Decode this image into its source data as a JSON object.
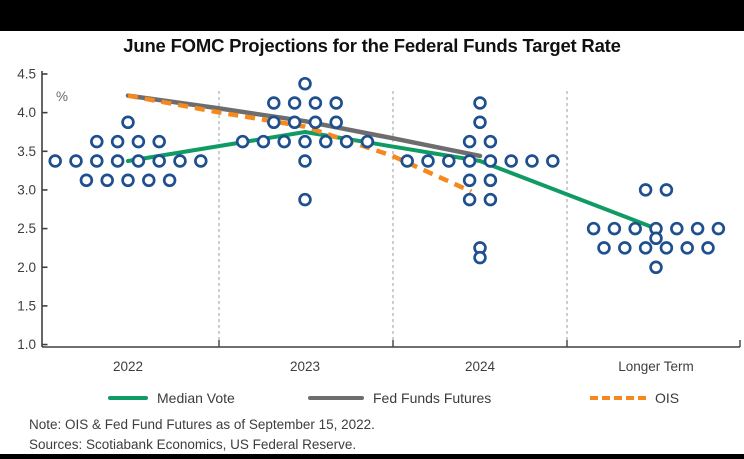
{
  "title": "June FOMC Projections for the Federal Funds Target Rate",
  "legend": {
    "median_vote": "Median Vote",
    "fed_funds_futures": "Fed Funds Futures",
    "ois": "OIS"
  },
  "notes": {
    "note": "Note: OIS & Fed Fund Futures as of September 15, 2022.",
    "sources": "Sources: Scotiabank Economics, US Federal Reserve."
  },
  "colors": {
    "banner": "#000000",
    "dot_outline": "#1e4f8f",
    "median_vote": "#109b64",
    "fed_funds_futures": "#6d6d6d",
    "ois": "#f6891e",
    "axis": "#404040",
    "separator": "#9c9c9c",
    "tick_text": "#3f3f3f"
  },
  "chart_data": {
    "type": "scatter",
    "title": "June FOMC Projections for the Federal Funds Target Rate",
    "xlabel": "",
    "ylabel": "%",
    "grid": "off",
    "legend_position": "bottom",
    "y_axis": {
      "unit_label": "%",
      "min": 1.0,
      "max": 4.5,
      "tick_values": [
        4.5,
        4.0,
        3.5,
        3.0,
        2.5,
        2.0,
        1.5,
        1.0
      ],
      "tick_labels": [
        "4.5",
        "4.0",
        "3.5",
        "3.0",
        "2.5",
        "2.0",
        "1.5",
        "1.0"
      ]
    },
    "x_categories": [
      "2022",
      "2023",
      "2024",
      "Longer Term"
    ],
    "dot_plot": {
      "marker": "open-circle",
      "description": "FOMC participant dots: count of votes at each target rate per year",
      "distributions": [
        {
          "category": "2022",
          "dots": [
            {
              "rate": 3.875,
              "count": 1
            },
            {
              "rate": 3.625,
              "count": 4
            },
            {
              "rate": 3.375,
              "count": 8
            },
            {
              "rate": 3.125,
              "count": 5
            }
          ]
        },
        {
          "category": "2023",
          "dots": [
            {
              "rate": 4.375,
              "count": 1
            },
            {
              "rate": 4.125,
              "count": 4
            },
            {
              "rate": 3.875,
              "count": 4
            },
            {
              "rate": 3.625,
              "count": 7
            },
            {
              "rate": 3.375,
              "count": 1
            },
            {
              "rate": 2.875,
              "count": 1
            }
          ]
        },
        {
          "category": "2024",
          "dots": [
            {
              "rate": 4.125,
              "count": 1
            },
            {
              "rate": 3.875,
              "count": 1
            },
            {
              "rate": 3.625,
              "count": 2
            },
            {
              "rate": 3.375,
              "count": 8
            },
            {
              "rate": 3.125,
              "count": 2
            },
            {
              "rate": 2.875,
              "count": 2
            },
            {
              "rate": 2.25,
              "count": 1
            },
            {
              "rate": 2.125,
              "count": 1
            }
          ]
        },
        {
          "category": "Longer Term",
          "dots": [
            {
              "rate": 3.0,
              "count": 2
            },
            {
              "rate": 2.5,
              "count": 7
            },
            {
              "rate": 2.375,
              "count": 1
            },
            {
              "rate": 2.25,
              "count": 6
            },
            {
              "rate": 2.0,
              "count": 1
            }
          ]
        }
      ]
    },
    "series": [
      {
        "name": "Median Vote",
        "style": "solid",
        "color": "#109b64",
        "width": 4,
        "points": [
          [
            0,
            3.375
          ],
          [
            1,
            3.75
          ],
          [
            2,
            3.375
          ],
          [
            3,
            2.5
          ]
        ]
      },
      {
        "name": "Fed Funds Futures",
        "style": "solid",
        "color": "#6d6d6d",
        "width": 4.5,
        "points": [
          [
            0,
            4.22
          ],
          [
            0.5,
            4.06
          ],
          [
            1,
            3.89
          ],
          [
            1.5,
            3.67
          ],
          [
            2,
            3.44
          ]
        ]
      },
      {
        "name": "OIS",
        "style": "dashed",
        "color": "#f6891e",
        "width": 4.5,
        "points": [
          [
            0,
            4.22
          ],
          [
            0.5,
            4.01
          ],
          [
            1,
            3.82
          ],
          [
            1.5,
            3.44
          ],
          [
            1.95,
            2.98
          ]
        ]
      }
    ]
  }
}
